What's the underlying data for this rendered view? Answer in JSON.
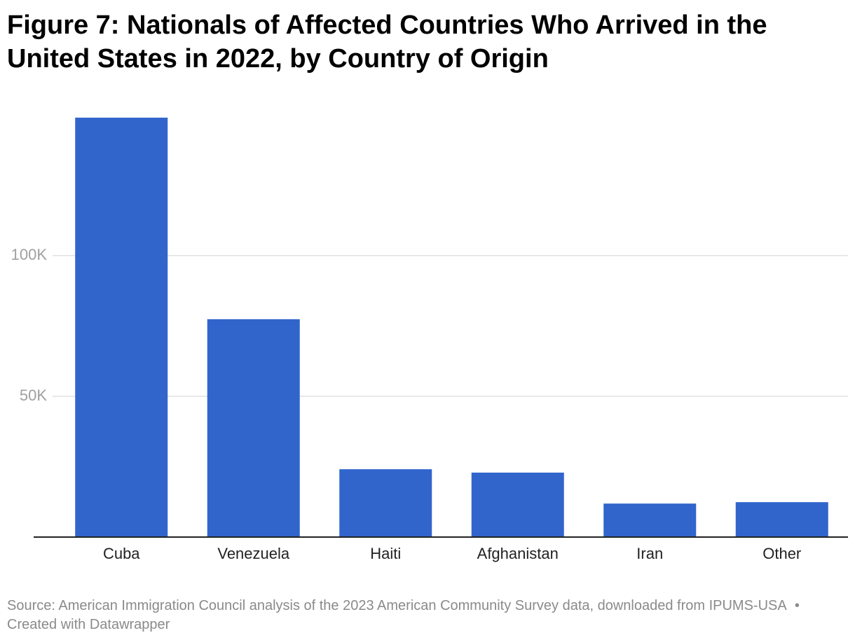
{
  "chart_data": {
    "type": "bar",
    "title": "Figure 7: Nationals of Affected Countries Who Arrived in the United States in 2022, by Country of Origin",
    "categories": [
      "Cuba",
      "Venezuela",
      "Haiti",
      "Afghanistan",
      "Iran",
      "Other"
    ],
    "values": [
      149000,
      77400,
      24100,
      22900,
      11900,
      12400
    ],
    "color": "#3165cc",
    "ylim": [
      0,
      150000
    ],
    "yticks": [
      {
        "value": 50000,
        "label": "50K"
      },
      {
        "value": 100000,
        "label": "100K"
      }
    ],
    "grid": true,
    "source": "Source: American Immigration Council analysis of the 2023 American Community Survey data, downloaded from IPUMS-USA",
    "credit": "• Created with Datawrapper"
  }
}
